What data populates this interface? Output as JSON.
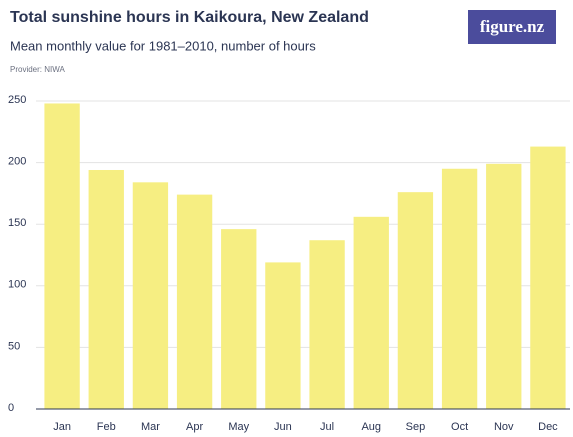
{
  "chart_data": {
    "type": "bar",
    "title": "Total sunshine hours in Kaikoura, New Zealand",
    "subtitle": "Mean monthly value for 1981–2010, number of hours",
    "provider": "Provider: NIWA",
    "logo": "figure.nz",
    "categories": [
      "Jan",
      "Feb",
      "Mar",
      "Apr",
      "May",
      "Jun",
      "Jul",
      "Aug",
      "Sep",
      "Oct",
      "Nov",
      "Dec"
    ],
    "values": [
      248,
      194,
      184,
      174,
      146,
      119,
      137,
      156,
      176,
      195,
      199,
      213
    ],
    "color": "#f6ee82",
    "ylim": [
      0,
      250
    ],
    "yticks": [
      0,
      50,
      100,
      150,
      200,
      250
    ],
    "grid": true
  }
}
